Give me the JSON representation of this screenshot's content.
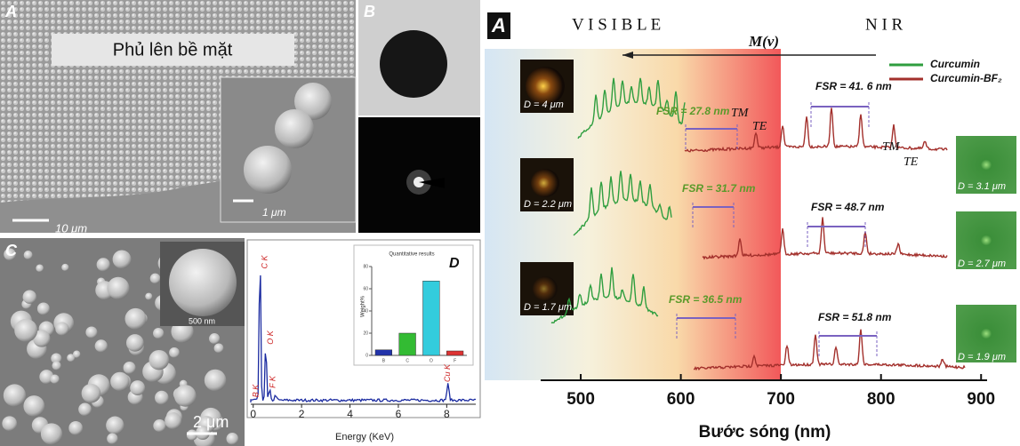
{
  "panel_a": {
    "label": "A",
    "caption": "Phủ lên bề mặt",
    "scale_bar": "10 μm",
    "inset_scale_bar": "1 μm"
  },
  "panel_b": {
    "label": "B"
  },
  "panel_c": {
    "label": "C",
    "inset_scale_bar": "500 nm",
    "scale_bar": "2 μm"
  },
  "panel_d": {
    "label": "D",
    "xlabel": "Energy (KeV)",
    "xlim": [
      -0.1,
      9.2
    ],
    "xticks": [
      0,
      2,
      4,
      6,
      8
    ],
    "peaks": [
      "C K",
      "O K",
      "B K",
      "F K",
      "Cu K"
    ],
    "inset_title": "Quantitative results",
    "inset_ylabel": "Weight%",
    "inset_categories": [
      "B",
      "C",
      "O",
      "F"
    ],
    "inset_values": [
      5,
      20,
      67,
      4
    ],
    "inset_colors": [
      "#2233aa",
      "#33bb33",
      "#33ccdd",
      "#dd3333"
    ],
    "inset_ylim": [
      0,
      80
    ],
    "inset_yticks": [
      0,
      20,
      40,
      60,
      80
    ]
  },
  "spectra": {
    "label": "A",
    "region_visible": "V I S I B L E",
    "region_nir": "N I R",
    "arrow_label": "M(v)",
    "legend": [
      {
        "name": "Curcumin",
        "color": "#2f9e3f"
      },
      {
        "name": "Curcumin-BF₂",
        "color": "#a3302c"
      }
    ],
    "fsr": [
      "FSR = 27.8 nm",
      "FSR = 41. 6 nm",
      "FSR = 31.7 nm",
      "FSR = 48.7 nm",
      "FSR = 36.5 nm",
      "FSR = 51.8 nm"
    ],
    "modes": [
      "TM",
      "TE",
      "TM",
      "TE"
    ],
    "diameters": [
      "D = 4 μm",
      "D = 2.2 μm",
      "D = 1.7 μm",
      "D = 3.1 μm",
      "D = 2.7 μm",
      "D = 1.9 μm"
    ],
    "xlabel": "Bước sóng (nm)",
    "xlim": [
      404,
      906
    ],
    "xticks": [
      500,
      600,
      700,
      800,
      900
    ]
  }
}
